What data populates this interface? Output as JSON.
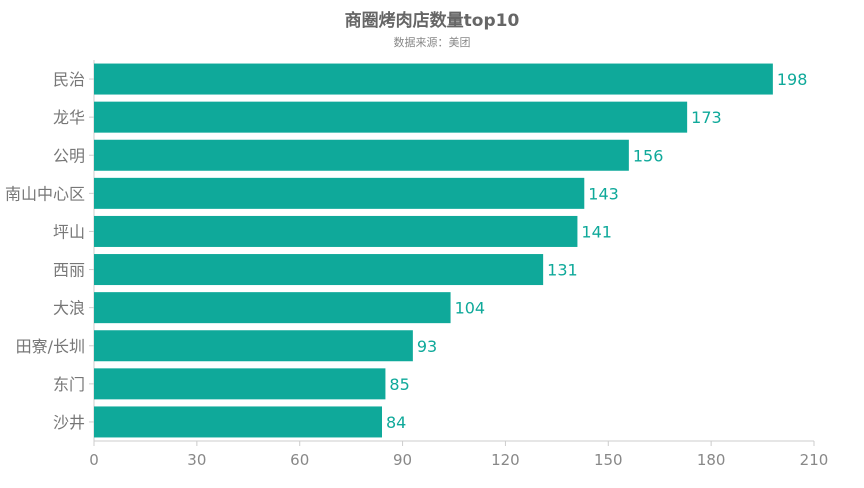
{
  "chart_data": {
    "type": "bar",
    "orientation": "horizontal",
    "title": "商圈烤肉店数量top10",
    "subtitle": "数据来源：美团",
    "categories": [
      "民治",
      "龙华",
      "公明",
      "南山中心区",
      "坪山",
      "西丽",
      "大浪",
      "田寮/长圳",
      "东门",
      "沙井"
    ],
    "values": [
      198,
      173,
      156,
      143,
      141,
      131,
      104,
      93,
      85,
      84
    ],
    "xlim": [
      0,
      210
    ],
    "xticks": [
      0,
      30,
      60,
      90,
      120,
      150,
      180,
      210
    ],
    "xlabel": "",
    "ylabel": "",
    "grid": false,
    "legend": "none",
    "bar_color": "#0fa99a",
    "label_color": "#0fa99a"
  }
}
